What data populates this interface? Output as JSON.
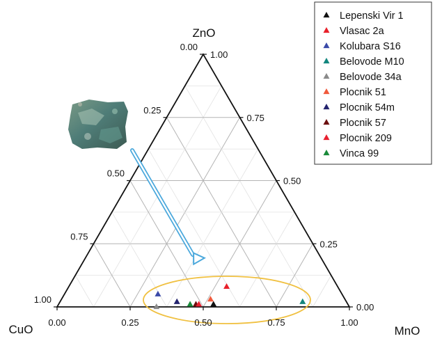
{
  "chart_data": {
    "type": "scatter",
    "subtype": "ternary",
    "axes": {
      "top": "ZnO",
      "left": "CuO",
      "right": "MnO"
    },
    "ticks": [
      "0.00",
      "0.25",
      "0.50",
      "0.75",
      "1.00"
    ],
    "tick_values": [
      0,
      0.25,
      0.5,
      0.75,
      1
    ],
    "grid": true,
    "minor_step": 0.125,
    "legend_position": "top-right",
    "series": [
      {
        "name": "Lepenski Vir 1",
        "color": "#111111",
        "points": [
          {
            "CuO": 0.46,
            "ZnO": 0.01,
            "MnO": 0.53
          }
        ]
      },
      {
        "name": "Vlasac 2a",
        "color": "#e8202a",
        "points": [
          {
            "CuO": 0.38,
            "ZnO": 0.08,
            "MnO": 0.54
          }
        ]
      },
      {
        "name": "Kolubara S16",
        "color": "#3a4aa8",
        "points": [
          {
            "CuO": 0.63,
            "ZnO": 0.05,
            "MnO": 0.32
          }
        ]
      },
      {
        "name": "Belovode M10",
        "color": "#12867e",
        "points": [
          {
            "CuO": 0.15,
            "ZnO": 0.02,
            "MnO": 0.83
          }
        ]
      },
      {
        "name": "Belovode 34a",
        "color": "#8a8a8a",
        "points": [
          {
            "CuO": 0.66,
            "ZnO": 0.0,
            "MnO": 0.34
          }
        ]
      },
      {
        "name": "Plocnik 51",
        "color": "#f05a3c",
        "points": [
          {
            "CuO": 0.46,
            "ZnO": 0.03,
            "MnO": 0.51
          }
        ]
      },
      {
        "name": "Plocnik 54m",
        "color": "#24246e",
        "points": [
          {
            "CuO": 0.58,
            "ZnO": 0.02,
            "MnO": 0.4
          }
        ]
      },
      {
        "name": "Plocnik 57",
        "color": "#6b0f0f",
        "points": [
          {
            "CuO": 0.52,
            "ZnO": 0.01,
            "MnO": 0.47
          }
        ]
      },
      {
        "name": "Plocnik 209",
        "color": "#e82030",
        "points": [
          {
            "CuO": 0.51,
            "ZnO": 0.01,
            "MnO": 0.48
          }
        ]
      },
      {
        "name": "Vinca 99",
        "color": "#1a8a3a",
        "points": [
          {
            "CuO": 0.54,
            "ZnO": 0.01,
            "MnO": 0.45
          }
        ]
      }
    ],
    "annotations": {
      "sample_photo": "mineral-sample-photo",
      "arrow": "arrow-to-cluster",
      "ellipse": "cluster-highlight-ellipse",
      "arrow_color": "#4aa8dc",
      "ellipse_color": "#f0c040"
    }
  }
}
